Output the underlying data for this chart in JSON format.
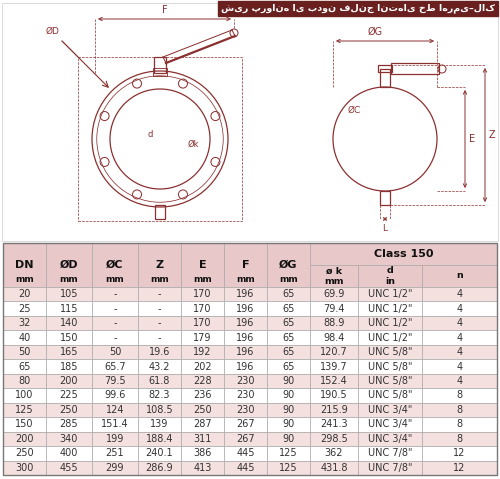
{
  "title": "شیر پروانه ای بدون فلنج انتهای خط اهرمی–لاک",
  "title_bg": "#6b2020",
  "title_fg": "#ffffff",
  "table_header_bg": "#e8c8c8",
  "table_row_bg_even": "#f5e0e0",
  "table_row_bg_odd": "#ffffff",
  "table_border": "#999999",
  "diagram_color": "#8b3030",
  "diagram_bg": "#f8f0f0",
  "bg_color": "#ffffff",
  "rows": [
    [
      "20",
      "105",
      "-",
      "-",
      "170",
      "196",
      "65",
      "69.9",
      "UNC 1/2\"",
      "4"
    ],
    [
      "25",
      "115",
      "-",
      "-",
      "170",
      "196",
      "65",
      "79.4",
      "UNC 1/2\"",
      "4"
    ],
    [
      "32",
      "140",
      "-",
      "-",
      "170",
      "196",
      "65",
      "88.9",
      "UNC 1/2\"",
      "4"
    ],
    [
      "40",
      "150",
      "-",
      "-",
      "179",
      "196",
      "65",
      "98.4",
      "UNC 1/2\"",
      "4"
    ],
    [
      "50",
      "165",
      "50",
      "19.6",
      "192",
      "196",
      "65",
      "120.7",
      "UNC 5/8\"",
      "4"
    ],
    [
      "65",
      "185",
      "65.7",
      "43.2",
      "202",
      "196",
      "65",
      "139.7",
      "UNC 5/8\"",
      "4"
    ],
    [
      "80",
      "200",
      "79.5",
      "61.8",
      "228",
      "230",
      "90",
      "152.4",
      "UNC 5/8\"",
      "4"
    ],
    [
      "100",
      "225",
      "99.6",
      "82.3",
      "236",
      "230",
      "90",
      "190.5",
      "UNC 5/8\"",
      "8"
    ],
    [
      "125",
      "250",
      "124",
      "108.5",
      "250",
      "230",
      "90",
      "215.9",
      "UNC 3/4\"",
      "8"
    ],
    [
      "150",
      "285",
      "151.4",
      "139",
      "287",
      "267",
      "90",
      "241.3",
      "UNC 3/4\"",
      "8"
    ],
    [
      "200",
      "340",
      "199",
      "188.4",
      "311",
      "267",
      "90",
      "298.5",
      "UNC 3/4\"",
      "8"
    ],
    [
      "250",
      "400",
      "251",
      "240.1",
      "386",
      "445",
      "125",
      "362",
      "UNC 7/8\"",
      "12"
    ],
    [
      "300",
      "455",
      "299",
      "286.9",
      "413",
      "445",
      "125",
      "431.8",
      "UNC 7/8\"",
      "12"
    ]
  ]
}
